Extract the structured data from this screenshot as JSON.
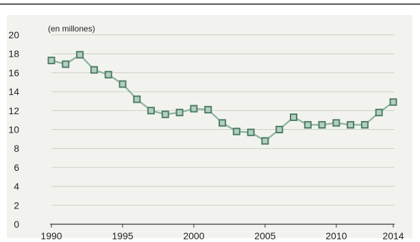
{
  "chart_data": {
    "type": "line",
    "unit_label": "(en millones)",
    "title": "",
    "xlabel": "",
    "ylabel": "",
    "x": [
      1990,
      1991,
      1992,
      1993,
      1994,
      1995,
      1996,
      1997,
      1998,
      1999,
      2000,
      2001,
      2002,
      2003,
      2004,
      2005,
      2006,
      2007,
      2008,
      2009,
      2010,
      2011,
      2012,
      2013,
      2014
    ],
    "values": [
      17.3,
      16.9,
      17.9,
      16.3,
      15.8,
      14.8,
      13.2,
      12.0,
      11.6,
      11.8,
      12.2,
      12.1,
      10.7,
      9.8,
      9.7,
      8.8,
      10.0,
      11.3,
      10.5,
      10.5,
      10.7,
      10.5,
      10.5,
      11.8,
      12.9
    ],
    "x_ticks": [
      "1990",
      "1995",
      "2000",
      "2005",
      "2010",
      "2014"
    ],
    "y_ticks": [
      "0",
      "2",
      "4",
      "6",
      "8",
      "10",
      "12",
      "14",
      "16",
      "18",
      "20"
    ],
    "xlim": [
      1990,
      2014
    ],
    "ylim": [
      0,
      20
    ],
    "grid": true,
    "marker": "square",
    "colors": {
      "line": "#8fb5a4",
      "marker_border": "#4d7d66",
      "marker_fill": "#b4cfc2",
      "grid": "#c9cfbe",
      "panel": "#f2f3ef"
    }
  }
}
